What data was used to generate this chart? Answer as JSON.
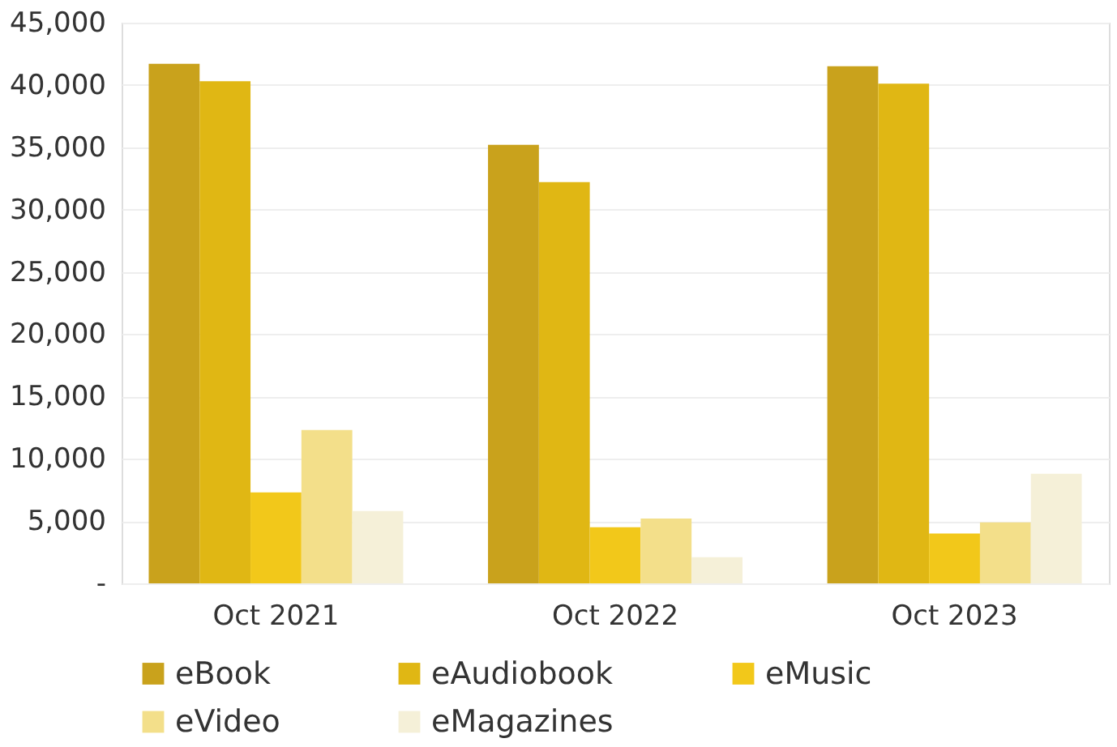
{
  "chart_data": {
    "type": "bar",
    "categories": [
      "Oct 2021",
      "Oct 2022",
      "Oct 2023"
    ],
    "series": [
      {
        "name": "eBook",
        "color": "#c9a21c",
        "values": [
          41700,
          35200,
          41500
        ]
      },
      {
        "name": "eAudiobook",
        "color": "#e0b714",
        "values": [
          40300,
          32200,
          40100
        ]
      },
      {
        "name": "eMusic",
        "color": "#f2c81a",
        "values": [
          7300,
          4500,
          4000
        ]
      },
      {
        "name": "eVideo",
        "color": "#f3df8a",
        "values": [
          12300,
          5200,
          4900
        ]
      },
      {
        "name": "eMagazines",
        "color": "#f5f0d8",
        "values": [
          5800,
          2100,
          8800
        ]
      }
    ],
    "ylim": [
      0,
      45000
    ],
    "yticks": [
      {
        "value": 0,
        "label": "-"
      },
      {
        "value": 5000,
        "label": "5,000"
      },
      {
        "value": 10000,
        "label": "10,000"
      },
      {
        "value": 15000,
        "label": "15,000"
      },
      {
        "value": 20000,
        "label": "20,000"
      },
      {
        "value": 25000,
        "label": "25,000"
      },
      {
        "value": 30000,
        "label": "30,000"
      },
      {
        "value": 35000,
        "label": "35,000"
      },
      {
        "value": 40000,
        "label": "40,000"
      },
      {
        "value": 45000,
        "label": "45,000"
      }
    ],
    "grid": "y",
    "legend": "bottom"
  }
}
